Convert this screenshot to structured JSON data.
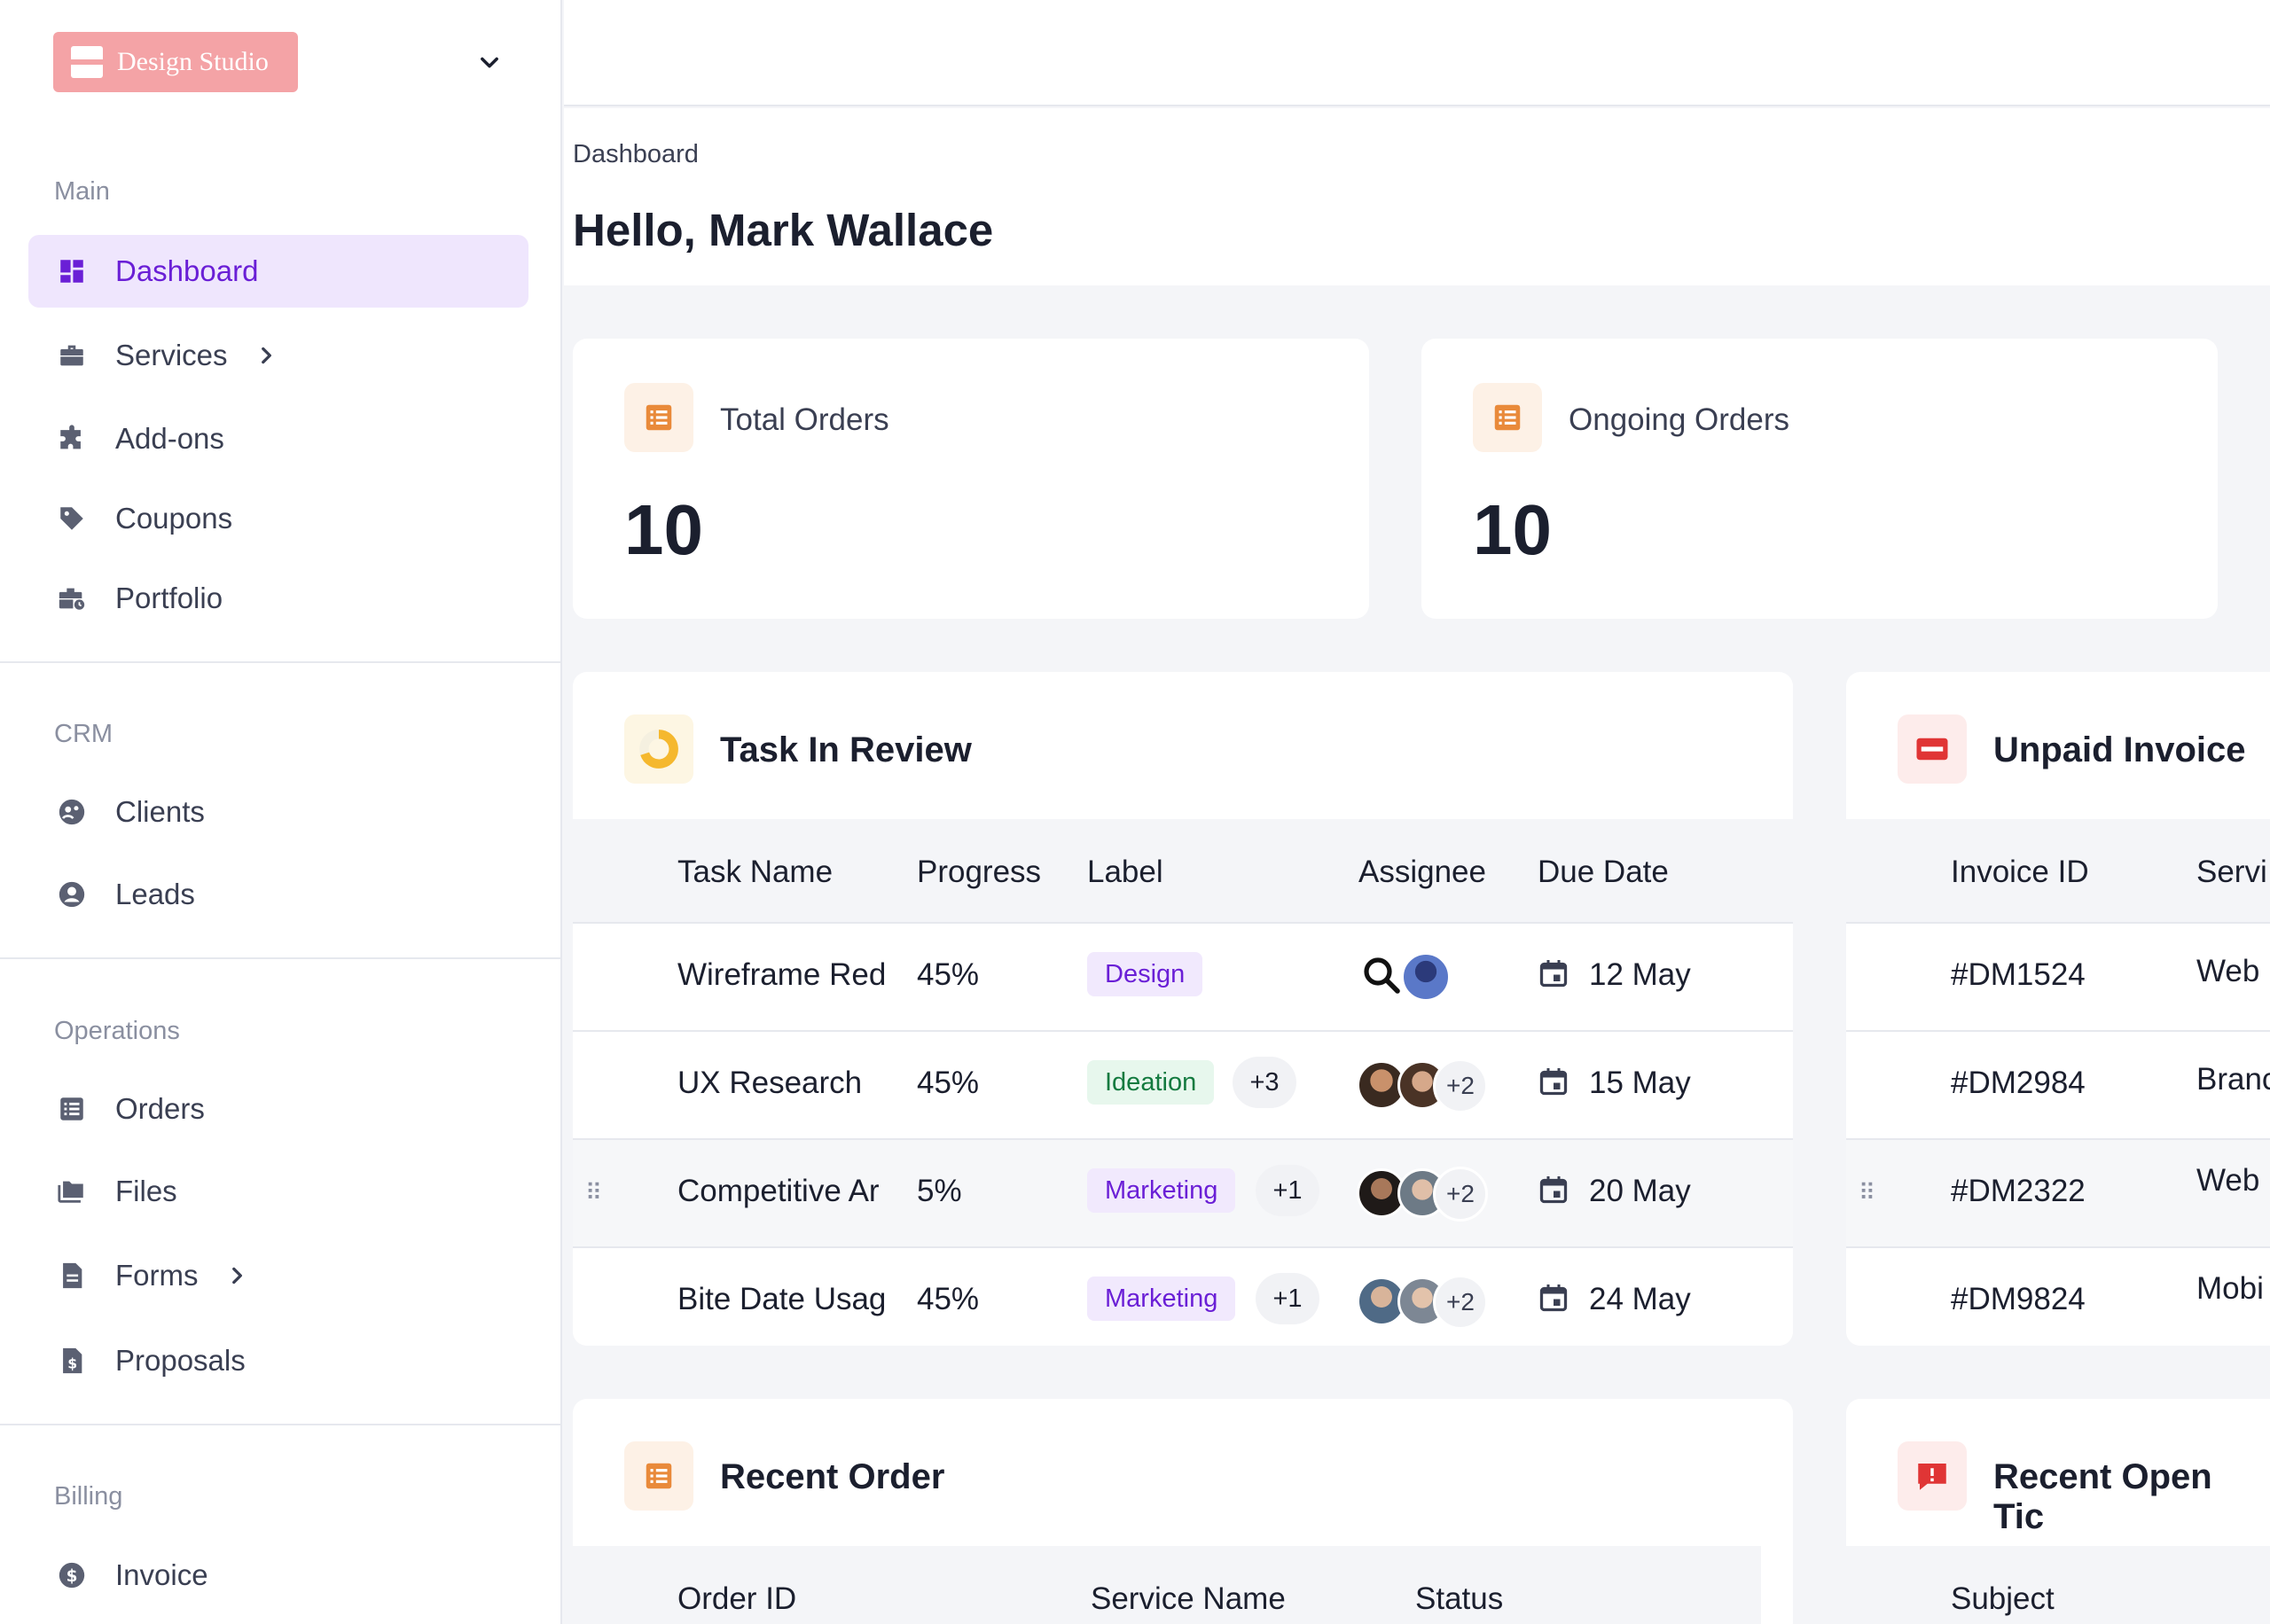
{
  "sidebar": {
    "brand": "Design Studio",
    "sections": {
      "main": "Main",
      "crm": "CRM",
      "operations": "Operations",
      "billing": "Billing"
    },
    "items": {
      "dashboard": "Dashboard",
      "services": "Services",
      "addons": "Add-ons",
      "coupons": "Coupons",
      "portfolio": "Portfolio",
      "clients": "Clients",
      "leads": "Leads",
      "orders": "Orders",
      "files": "Files",
      "forms": "Forms",
      "proposals": "Proposals",
      "invoice": "Invoice"
    }
  },
  "header": {
    "breadcrumb": "Dashboard",
    "greeting": "Hello, Mark Wallace"
  },
  "stats": [
    {
      "label": "Total Orders",
      "value": "10"
    },
    {
      "label": "Ongoing Orders",
      "value": "10"
    }
  ],
  "tasks": {
    "title": "Task In Review",
    "columns": [
      "Task Name",
      "Progress",
      "Label",
      "Assignee",
      "Due Date"
    ],
    "rows": [
      {
        "name": "Wireframe Red",
        "progress": "45%",
        "label": "Design",
        "label_color": "purple",
        "extra": "",
        "assignee_more": "",
        "due": "12 May"
      },
      {
        "name": "UX Research",
        "progress": "45%",
        "label": "Ideation",
        "label_color": "green",
        "extra": "+3",
        "assignee_more": "+2",
        "due": "15 May"
      },
      {
        "name": "Competitive Ar",
        "progress": "5%",
        "label": "Marketing",
        "label_color": "purple",
        "extra": "+1",
        "assignee_more": "+2",
        "due": "20 May"
      },
      {
        "name": "Bite Date Usag",
        "progress": "45%",
        "label": "Marketing",
        "label_color": "purple",
        "extra": "+1",
        "assignee_more": "+2",
        "due": "24 May"
      }
    ]
  },
  "invoices": {
    "title": "Unpaid Invoice",
    "columns": [
      "Invoice ID",
      "Servi"
    ],
    "rows": [
      {
        "id": "#DM1524",
        "service": "Web"
      },
      {
        "id": "#DM2984",
        "service": "Branc"
      },
      {
        "id": "#DM2322",
        "service": "Web"
      },
      {
        "id": "#DM9824",
        "service": "Mobi"
      }
    ]
  },
  "recent_order": {
    "title": "Recent Order",
    "columns": [
      "Order ID",
      "Service Name",
      "Status"
    ]
  },
  "recent_tickets": {
    "title": "Recent Open Tic",
    "columns": [
      "Subject"
    ]
  },
  "colors": {
    "accent": "#6a1fd6",
    "brand": "#f4a3a6",
    "orange": "#e98a3a",
    "red": "#e03535"
  }
}
